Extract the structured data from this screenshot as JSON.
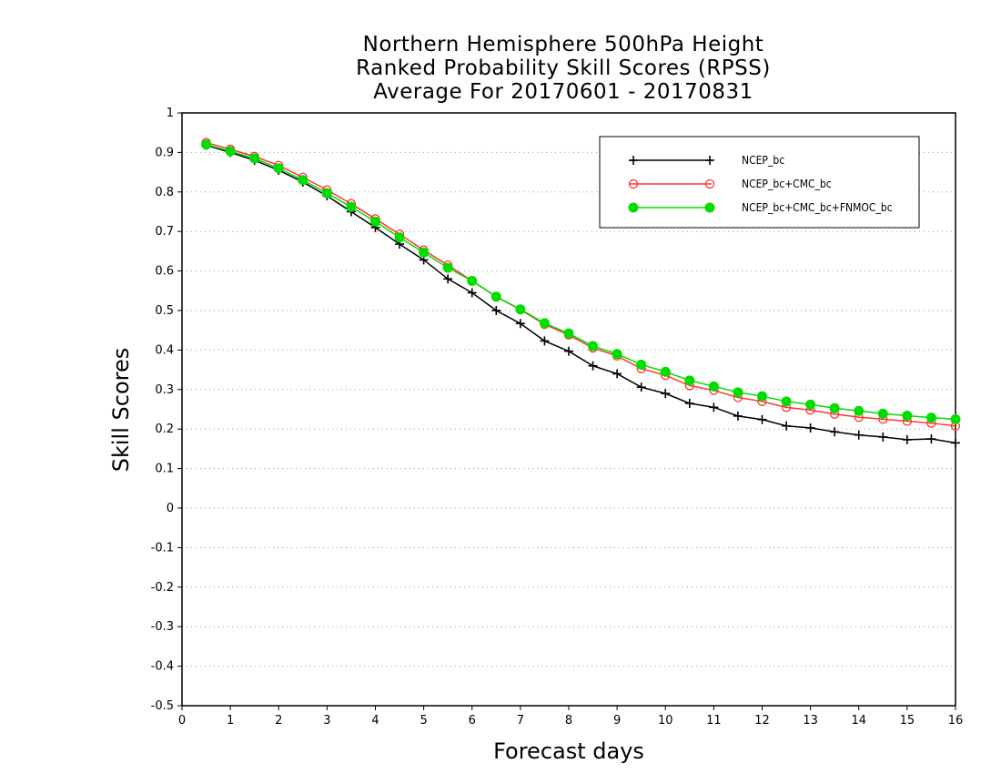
{
  "chart_data": {
    "type": "line",
    "title": [
      "Northern Hemisphere 500hPa Height",
      "Ranked Probability Skill Scores (RPSS)",
      "Average For 20170601 - 20170831"
    ],
    "xlabel": "Forecast days",
    "ylabel": "Skill Scores",
    "xlim": [
      0,
      16
    ],
    "ylim": [
      -0.5,
      1
    ],
    "xticks": [
      0,
      1,
      2,
      3,
      4,
      5,
      6,
      7,
      8,
      9,
      10,
      11,
      12,
      13,
      14,
      15,
      16
    ],
    "yticks": [
      -0.5,
      -0.4,
      -0.3,
      -0.2,
      -0.1,
      0,
      0.1,
      0.2,
      0.3,
      0.4,
      0.5,
      0.6,
      0.7,
      0.8,
      0.9,
      1
    ],
    "grid": "horizontal dotted",
    "legend_position": "top-right",
    "x": [
      0.5,
      1,
      1.5,
      2,
      2.5,
      3,
      3.5,
      4,
      4.5,
      5,
      5.5,
      6,
      6.5,
      7,
      7.5,
      8,
      8.5,
      9,
      9.5,
      10,
      10.5,
      11,
      11.5,
      12,
      12.5,
      13,
      13.5,
      14,
      14.5,
      15,
      15.5,
      16
    ],
    "series": [
      {
        "name": "NCEP_bc",
        "color": "#000000",
        "marker": "plus",
        "values": [
          0.918,
          0.9,
          0.88,
          0.855,
          0.825,
          0.79,
          0.75,
          0.71,
          0.668,
          0.628,
          0.58,
          0.545,
          0.5,
          0.467,
          0.423,
          0.397,
          0.36,
          0.34,
          0.306,
          0.29,
          0.265,
          0.255,
          0.233,
          0.224,
          0.208,
          0.203,
          0.193,
          0.185,
          0.18,
          0.173,
          0.175,
          0.165
        ]
      },
      {
        "name": "NCEP_bc+CMC_bc",
        "color": "#ff3333",
        "marker": "open-circle",
        "values": [
          0.925,
          0.908,
          0.89,
          0.867,
          0.837,
          0.805,
          0.77,
          0.732,
          0.693,
          0.653,
          0.615,
          0.575,
          0.535,
          0.502,
          0.465,
          0.438,
          0.405,
          0.385,
          0.353,
          0.336,
          0.31,
          0.298,
          0.28,
          0.27,
          0.255,
          0.248,
          0.238,
          0.23,
          0.225,
          0.22,
          0.215,
          0.208
        ]
      },
      {
        "name": "NCEP_bc+CMC_bc+FNMOC_bc",
        "color": "#00dd00",
        "marker": "filled-circle",
        "values": [
          0.92,
          0.903,
          0.885,
          0.86,
          0.83,
          0.797,
          0.762,
          0.725,
          0.685,
          0.647,
          0.608,
          0.575,
          0.535,
          0.503,
          0.468,
          0.442,
          0.41,
          0.39,
          0.363,
          0.345,
          0.323,
          0.308,
          0.293,
          0.283,
          0.27,
          0.262,
          0.253,
          0.246,
          0.239,
          0.234,
          0.229,
          0.225
        ]
      }
    ]
  }
}
